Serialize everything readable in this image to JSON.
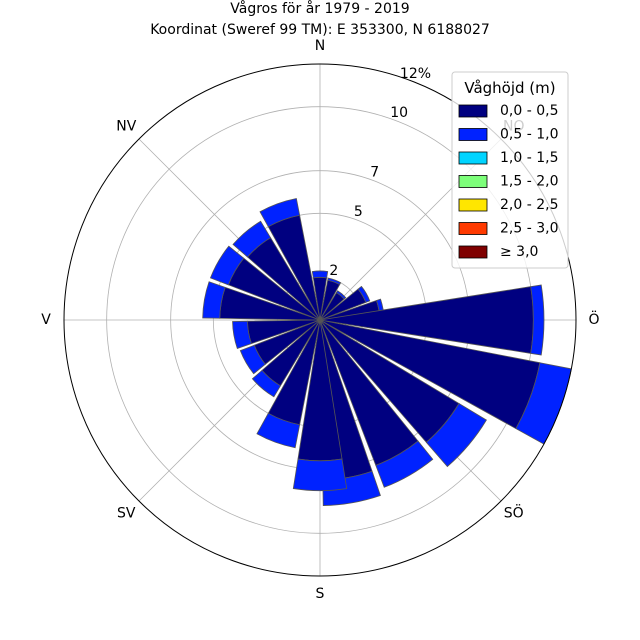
{
  "chart_data": {
    "type": "windrose",
    "title": "Vågros för år 1979 - 2019",
    "subtitle": "Koordinat (Sweref 99 TM): E 353300, N 6188027",
    "directions": [
      "N",
      "NV",
      "V",
      "SV",
      "S",
      "SÖ",
      "Ö",
      "NO"
    ],
    "rings": {
      "values": [
        2,
        5,
        7,
        10,
        12
      ],
      "labels": [
        "2",
        "5",
        "7",
        "10",
        "12%"
      ],
      "max": 12
    },
    "sector_width_deg": 18,
    "legend": {
      "title": "Våghöjd (m)",
      "placement": "top-right",
      "items": [
        {
          "label": "0,0 - 0,5",
          "color": "#000080"
        },
        {
          "label": "0,5 - 1,0",
          "color": "#0022ff"
        },
        {
          "label": "1,0 - 1,5",
          "color": "#00d4ff"
        },
        {
          "label": "1,5 - 2,0",
          "color": "#7dff7a"
        },
        {
          "label": "2,0 - 2,5",
          "color": "#ffe600"
        },
        {
          "label": "2,5 - 3,0",
          "color": "#ff3a00"
        },
        {
          "label": "≥ 3,0",
          "color": "#7f0000"
        }
      ]
    },
    "sectors": [
      {
        "angle": 0,
        "values": [
          2.0,
          0.3
        ]
      },
      {
        "angle": 20,
        "values": [
          1.9,
          0.1
        ]
      },
      {
        "angle": 40,
        "values": [
          1.5,
          0.1
        ]
      },
      {
        "angle": 60,
        "values": [
          2.3,
          0.2
        ]
      },
      {
        "angle": 80,
        "values": [
          2.8,
          0.2
        ]
      },
      {
        "angle": 90,
        "values": [
          10.0,
          0.5
        ]
      },
      {
        "angle": 110,
        "values": [
          10.5,
          1.5
        ]
      },
      {
        "angle": 130,
        "values": [
          7.6,
          1.5
        ]
      },
      {
        "angle": 150,
        "values": [
          7.3,
          1.1
        ]
      },
      {
        "angle": 170,
        "values": [
          7.5,
          1.2
        ]
      },
      {
        "angle": 180,
        "values": [
          6.6,
          1.4
        ]
      },
      {
        "angle": 200,
        "values": [
          5.0,
          1.1
        ]
      },
      {
        "angle": 220,
        "values": [
          3.6,
          0.6
        ]
      },
      {
        "angle": 240,
        "values": [
          3.3,
          0.7
        ]
      },
      {
        "angle": 260,
        "values": [
          3.4,
          0.7
        ]
      },
      {
        "angle": 280,
        "values": [
          4.7,
          0.8
        ]
      },
      {
        "angle": 300,
        "values": [
          4.6,
          0.9
        ]
      },
      {
        "angle": 320,
        "values": [
          4.5,
          0.9
        ]
      },
      {
        "angle": 340,
        "values": [
          5.0,
          0.8
        ]
      }
    ]
  }
}
